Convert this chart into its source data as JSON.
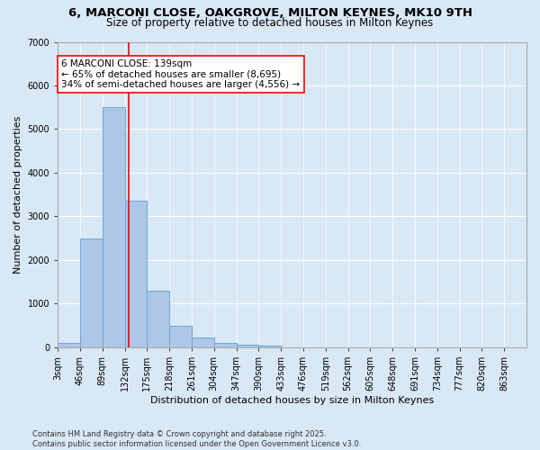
{
  "title_line1": "6, MARCONI CLOSE, OAKGROVE, MILTON KEYNES, MK10 9TH",
  "title_line2": "Size of property relative to detached houses in Milton Keynes",
  "xlabel": "Distribution of detached houses by size in Milton Keynes",
  "ylabel": "Number of detached properties",
  "bar_color": "#aec6e8",
  "bar_edge_color": "#6aaad4",
  "vline_color": "red",
  "vline_x": 139,
  "annotation_text": "6 MARCONI CLOSE: 139sqm\n← 65% of detached houses are smaller (8,695)\n34% of semi-detached houses are larger (4,556) →",
  "annotation_box_color": "white",
  "annotation_box_edge_color": "red",
  "bg_color": "#d9e8f5",
  "grid_color": "white",
  "categories": [
    "3sqm",
    "46sqm",
    "89sqm",
    "132sqm",
    "175sqm",
    "218sqm",
    "261sqm",
    "304sqm",
    "347sqm",
    "390sqm",
    "433sqm",
    "476sqm",
    "519sqm",
    "562sqm",
    "605sqm",
    "648sqm",
    "691sqm",
    "734sqm",
    "777sqm",
    "820sqm",
    "863sqm"
  ],
  "bin_edges": [
    3,
    46,
    89,
    132,
    175,
    218,
    261,
    304,
    347,
    390,
    433,
    476,
    519,
    562,
    605,
    648,
    691,
    734,
    777,
    820,
    863,
    906
  ],
  "bar_heights": [
    100,
    2500,
    5500,
    3350,
    1300,
    490,
    220,
    100,
    60,
    30,
    0,
    0,
    0,
    0,
    0,
    0,
    0,
    0,
    0,
    0,
    0
  ],
  "ylim": [
    0,
    7000
  ],
  "yticks": [
    0,
    1000,
    2000,
    3000,
    4000,
    5000,
    6000,
    7000
  ],
  "footnote": "Contains HM Land Registry data © Crown copyright and database right 2025.\nContains public sector information licensed under the Open Government Licence v3.0.",
  "title_fontsize": 9.5,
  "subtitle_fontsize": 8.5,
  "tick_fontsize": 7,
  "axis_label_fontsize": 8,
  "footnote_fontsize": 6,
  "annotation_fontsize": 7.5
}
